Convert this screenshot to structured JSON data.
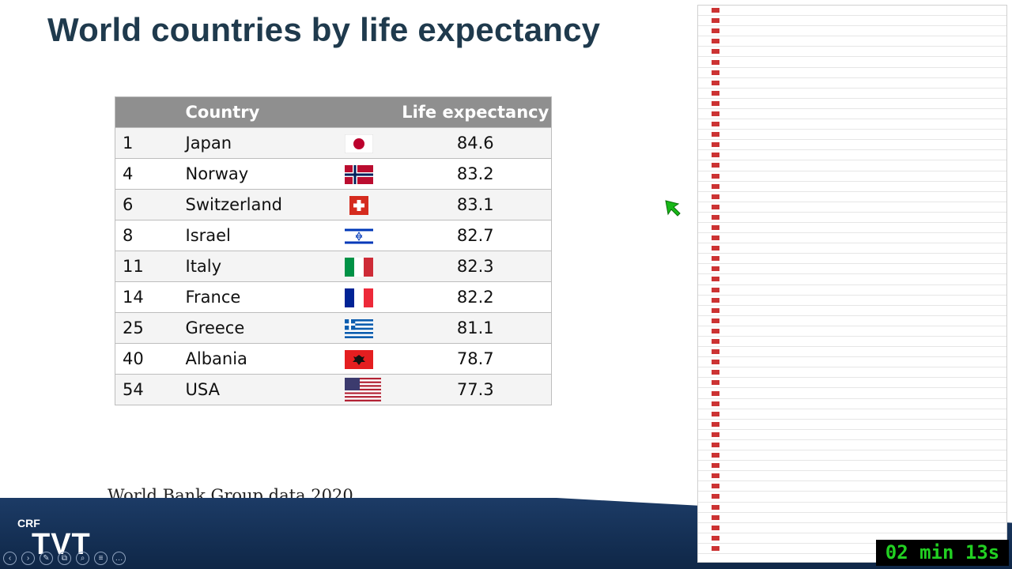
{
  "slide": {
    "title": "World countries by life expectancy",
    "source_note": "World Bank Group data 2020"
  },
  "table": {
    "headers": {
      "rank": "",
      "country": "Country",
      "flag": "",
      "life": "Life expectancy"
    },
    "rows": [
      {
        "rank": "1",
        "country": " Japan",
        "flag": "japan-flag-icon",
        "life": "84.6"
      },
      {
        "rank": "4",
        "country": "Norway",
        "flag": "norway-flag-icon",
        "life": "83.2"
      },
      {
        "rank": "6",
        "country": "Switzerland",
        "flag": "switzerland-flag-icon",
        "life": "83.1"
      },
      {
        "rank": "8",
        "country": "Israel",
        "flag": "israel-flag-icon",
        "life": "82.7"
      },
      {
        "rank": "11",
        "country": "Italy",
        "flag": "italy-flag-icon",
        "life": "82.3"
      },
      {
        "rank": "14",
        "country": "France",
        "flag": "france-flag-icon",
        "life": "82.2"
      },
      {
        "rank": "25",
        "country": "Greece",
        "flag": "greece-flag-icon",
        "life": "81.1"
      },
      {
        "rank": "40",
        "country": "Albania",
        "flag": "albania-flag-icon",
        "life": "78.7"
      },
      {
        "rank": "54",
        "country": "USA",
        "flag": "usa-flag-icon",
        "life": "77.3"
      }
    ]
  },
  "branding": {
    "crf": "CRF",
    "tvt": "TVT"
  },
  "player_controls": [
    "prev-icon",
    "next-icon",
    "pen-icon",
    "copy-icon",
    "zoom-icon",
    "menu-icon",
    "more-icon"
  ],
  "timer": {
    "text": "02 min 13s"
  },
  "colors": {
    "title": "#1f3a4d",
    "header_bg": "#8f8f8f",
    "band": "#1c3b66",
    "timer_text": "#22d022"
  }
}
